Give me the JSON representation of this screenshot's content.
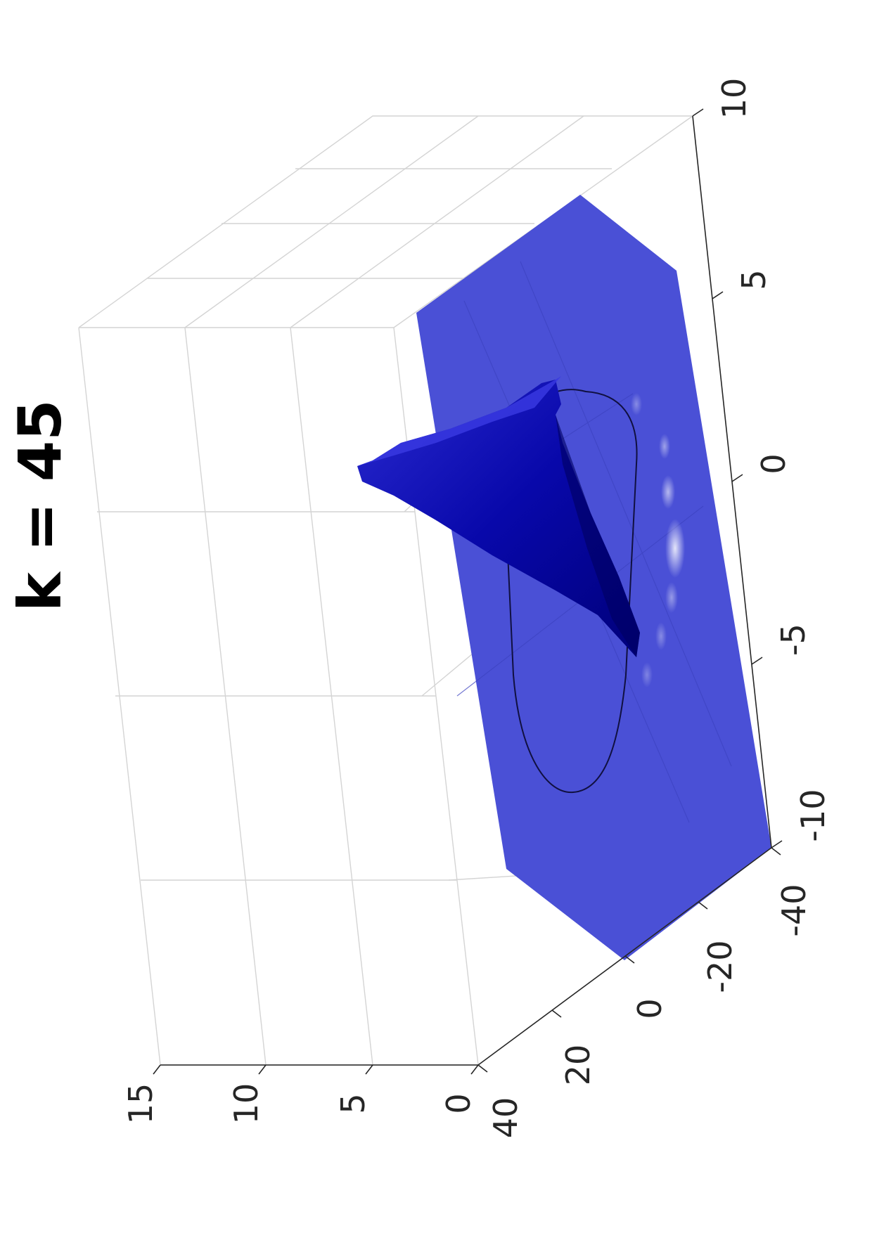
{
  "chart_data": {
    "type": "surface3d",
    "title": "k = 45",
    "orientation": "rotated 90 degrees counter-clockwise",
    "axes": {
      "x": {
        "range": [
          -10,
          10
        ],
        "ticks": [
          "-10",
          "-5",
          "0",
          "5",
          "10"
        ]
      },
      "y": {
        "range": [
          -40,
          40
        ],
        "ticks": [
          "-40",
          "-20",
          "0",
          "20",
          "40"
        ]
      },
      "z": {
        "range": [
          0,
          15
        ],
        "ticks": [
          "0",
          "5",
          "10",
          "15"
        ]
      }
    },
    "grid": true,
    "surface": {
      "plane_z": 0,
      "plane_color": "#4a50d6",
      "peak_color": "#0a0aa8",
      "peak_height": 13,
      "peak_x": 0.5,
      "contour_level": "closed curve at base"
    }
  }
}
